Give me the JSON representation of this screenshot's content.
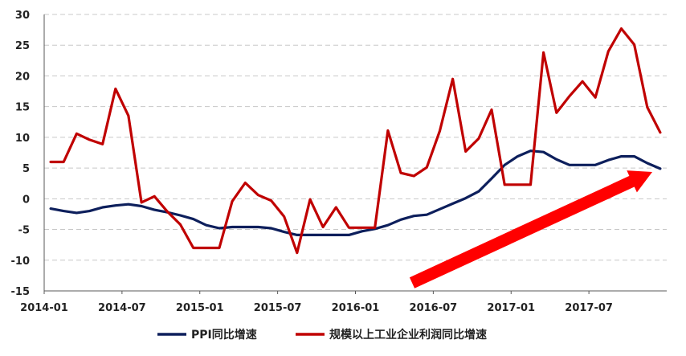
{
  "chart_data": {
    "type": "line",
    "ylim": [
      -15,
      30
    ],
    "yticks": [
      30,
      25,
      20,
      15,
      10,
      5,
      0,
      -5,
      -10,
      -15
    ],
    "ytick_labels": [
      "30",
      "25",
      "20",
      "15",
      "10",
      "5",
      "0",
      "-5",
      "-10",
      "-15"
    ],
    "xtick_labels": [
      "2014-01",
      "2014-07",
      "2015-01",
      "2015-07",
      "2016-01",
      "2016-07",
      "2017-01",
      "2017-07"
    ],
    "grid": "horizontal dashed",
    "legend_position": "bottom",
    "x": [
      "2014-01",
      "2014-02",
      "2014-03",
      "2014-04",
      "2014-05",
      "2014-06",
      "2014-07",
      "2014-08",
      "2014-09",
      "2014-10",
      "2014-11",
      "2014-12",
      "2015-01",
      "2015-02",
      "2015-03",
      "2015-04",
      "2015-05",
      "2015-06",
      "2015-07",
      "2015-08",
      "2015-09",
      "2015-10",
      "2015-11",
      "2015-12",
      "2016-01",
      "2016-02",
      "2016-03",
      "2016-04",
      "2016-05",
      "2016-06",
      "2016-07",
      "2016-08",
      "2016-09",
      "2016-10",
      "2016-11",
      "2016-12",
      "2017-01",
      "2017-02",
      "2017-03",
      "2017-04",
      "2017-05",
      "2017-06",
      "2017-07",
      "2017-08",
      "2017-09",
      "2017-10",
      "2017-11",
      "2017-12"
    ],
    "series": [
      {
        "name": "PPI同比增速",
        "color": "#0d1f5c",
        "values": [
          -1.6,
          -2.0,
          -2.3,
          -2.0,
          -1.4,
          -1.1,
          -0.9,
          -1.2,
          -1.8,
          -2.2,
          -2.7,
          -3.3,
          -4.3,
          -4.8,
          -4.6,
          -4.6,
          -4.6,
          -4.8,
          -5.4,
          -5.9,
          -5.9,
          -5.9,
          -5.9,
          -5.9,
          -5.3,
          -4.9,
          -4.3,
          -3.4,
          -2.8,
          -2.6,
          -1.7,
          -0.8,
          0.1,
          1.2,
          3.3,
          5.5,
          6.9,
          7.8,
          7.6,
          6.4,
          5.5,
          5.5,
          5.5,
          6.3,
          6.9,
          6.9,
          5.8,
          4.9
        ]
      },
      {
        "name": "规模以上工业企业利润同比增速",
        "color": "#c00000",
        "values": [
          6.0,
          6.0,
          10.6,
          9.6,
          8.9,
          17.9,
          13.5,
          -0.6,
          0.4,
          -2.1,
          -4.2,
          -8.0,
          -8.0,
          -8.0,
          -0.4,
          2.6,
          0.6,
          -0.3,
          -2.9,
          -8.8,
          -0.1,
          -4.6,
          -1.4,
          -4.7,
          -4.7,
          -4.7,
          11.1,
          4.2,
          3.7,
          5.1,
          11.0,
          19.5,
          7.7,
          9.8,
          14.5,
          2.3,
          2.3,
          2.3,
          23.8,
          14.0,
          16.7,
          19.1,
          16.5,
          24.0,
          27.7,
          25.1,
          14.9,
          10.8
        ]
      }
    ]
  },
  "colors": {
    "arrow": "#ff0000",
    "grid": "#c8c8c8",
    "axis": "#595959"
  }
}
